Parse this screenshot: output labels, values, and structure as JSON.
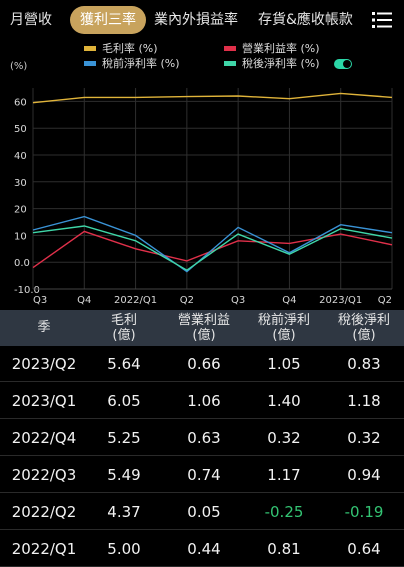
{
  "tabs": [
    {
      "label": "月營收",
      "active": false
    },
    {
      "label": "獲利三率",
      "active": true
    },
    {
      "label": "業內外損益率",
      "active": false
    },
    {
      "label": "存貨&應收帳款",
      "active": false
    }
  ],
  "colors": {
    "accent": "#c8a35d",
    "gross": "#e0b43a",
    "operating": "#e0304a",
    "pretax": "#3a93d6",
    "aftertax": "#3fd6a8",
    "negative": "#33c473"
  },
  "legend": {
    "gross": "毛利率 (%)",
    "operating": "營業利益率 (%)",
    "pretax": "稅前淨利率 (%)",
    "aftertax": "稅後淨利率 (%)"
  },
  "chart_unit": "(%)",
  "chart_data": {
    "type": "line",
    "x": [
      "Q3",
      "Q4",
      "2022/Q1",
      "Q2",
      "Q3",
      "Q4",
      "2023/Q1",
      "Q2"
    ],
    "x_tick_labels": [
      "Q3",
      "Q4",
      "2022/Q1",
      "Q2",
      "Q3",
      "Q4",
      "2023/Q1",
      "Q2"
    ],
    "ylim": [
      -10,
      65
    ],
    "y_ticks": [
      -10.0,
      0.0,
      10,
      20,
      30,
      40,
      50,
      60
    ],
    "y_tick_labels": [
      "-10.0",
      "0.0",
      "10",
      "20",
      "30",
      "40",
      "50",
      "60"
    ],
    "grid": true,
    "series": [
      {
        "name": "毛利率 (%)",
        "color": "#e0b43a",
        "values": [
          59.5,
          61.5,
          61.5,
          61.8,
          62.0,
          61.0,
          63.0,
          61.5
        ]
      },
      {
        "name": "營業利益率 (%)",
        "color": "#e0304a",
        "values": [
          -2.0,
          11.5,
          5.0,
          0.5,
          8.0,
          7.0,
          10.5,
          6.5
        ]
      },
      {
        "name": "稅前淨利率 (%)",
        "color": "#3a93d6",
        "values": [
          12.0,
          17.0,
          10.0,
          -3.5,
          13.0,
          3.5,
          14.0,
          11.0
        ]
      },
      {
        "name": "稅後淨利率 (%)",
        "color": "#3fd6a8",
        "values": [
          11.0,
          13.5,
          8.0,
          -3.0,
          10.5,
          3.0,
          12.5,
          9.0
        ]
      }
    ]
  },
  "table": {
    "headers": [
      {
        "l1": "季",
        "l2": ""
      },
      {
        "l1": "毛利",
        "l2": "(億)"
      },
      {
        "l1": "營業利益",
        "l2": "(億)"
      },
      {
        "l1": "稅前淨利",
        "l2": "(億)"
      },
      {
        "l1": "稅後淨利",
        "l2": "(億)"
      }
    ],
    "rows": [
      [
        "2023/Q2",
        "5.64",
        "0.66",
        "1.05",
        "0.83"
      ],
      [
        "2023/Q1",
        "6.05",
        "1.06",
        "1.40",
        "1.18"
      ],
      [
        "2022/Q4",
        "5.25",
        "0.63",
        "0.32",
        "0.32"
      ],
      [
        "2022/Q3",
        "5.49",
        "0.74",
        "1.17",
        "0.94"
      ],
      [
        "2022/Q2",
        "4.37",
        "0.05",
        "-0.25",
        "-0.19"
      ],
      [
        "2022/Q1",
        "5.00",
        "0.44",
        "0.81",
        "0.64"
      ]
    ]
  }
}
